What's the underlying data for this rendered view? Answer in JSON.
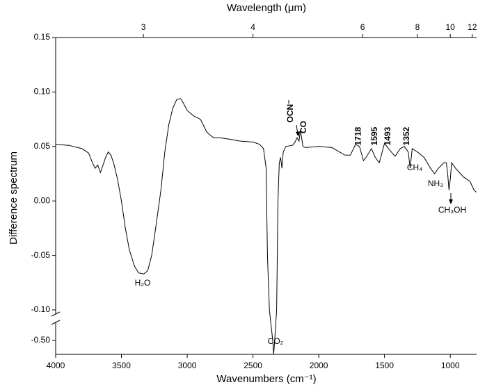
{
  "chart_data": {
    "type": "line",
    "xlabel": "Wavenumbers (cm⁻¹)",
    "ylabel": "Difference spectrum",
    "x2label": "Wavelength (μm)",
    "color": "#000000",
    "xlim": [
      4000,
      800
    ],
    "xticks": [
      4000,
      3500,
      3000,
      2500,
      2000,
      1500,
      1000
    ],
    "x2ticks": [
      3,
      4,
      6,
      8,
      10,
      12
    ],
    "ylim": [
      -0.53,
      0.15
    ],
    "y_break": [
      -0.47,
      -0.1
    ],
    "yticks": [
      {
        "value": -0.5,
        "label": "-0.50"
      },
      {
        "value": -0.1,
        "label": "-0.10"
      },
      -0.05,
      {
        "value": 0,
        "label": "0.00"
      },
      0.05,
      {
        "value": 0.1,
        "label": "0.10"
      },
      0.15
    ],
    "x": [
      4000,
      3900,
      3800,
      3750,
      3720,
      3700,
      3680,
      3660,
      3640,
      3620,
      3600,
      3580,
      3560,
      3530,
      3500,
      3470,
      3440,
      3400,
      3370,
      3330,
      3300,
      3270,
      3240,
      3200,
      3170,
      3140,
      3110,
      3080,
      3050,
      3030,
      3000,
      2950,
      2900,
      2850,
      2800,
      2750,
      2700,
      2600,
      2500,
      2450,
      2420,
      2400,
      2390,
      2375,
      2350,
      2343,
      2335,
      2320,
      2310,
      2300,
      2290,
      2280,
      2270,
      2250,
      2200,
      2180,
      2165,
      2150,
      2140,
      2130,
      2120,
      2100,
      2000,
      1900,
      1800,
      1760,
      1720,
      1690,
      1660,
      1640,
      1600,
      1570,
      1540,
      1500,
      1470,
      1420,
      1380,
      1350,
      1320,
      1305,
      1290,
      1250,
      1200,
      1150,
      1120,
      1090,
      1050,
      1030,
      1020,
      1010,
      1000,
      990,
      960,
      900,
      850,
      820,
      800
    ],
    "values": [
      0.052,
      0.051,
      0.048,
      0.044,
      0.035,
      0.03,
      0.033,
      0.026,
      0.033,
      0.04,
      0.045,
      0.042,
      0.035,
      0.02,
      0.0,
      -0.025,
      -0.045,
      -0.06,
      -0.066,
      -0.067,
      -0.064,
      -0.05,
      -0.025,
      0.01,
      0.045,
      0.07,
      0.085,
      0.093,
      0.094,
      0.09,
      0.083,
      0.078,
      0.075,
      0.063,
      0.058,
      0.058,
      0.057,
      0.055,
      0.054,
      0.052,
      0.048,
      0.03,
      -0.05,
      -0.1,
      -0.5,
      -0.53,
      -0.5,
      -0.1,
      0.0,
      0.035,
      0.04,
      0.03,
      0.045,
      0.05,
      0.051,
      0.054,
      0.058,
      0.055,
      0.065,
      0.058,
      0.05,
      0.049,
      0.05,
      0.049,
      0.042,
      0.042,
      0.052,
      0.05,
      0.037,
      0.04,
      0.048,
      0.04,
      0.035,
      0.053,
      0.048,
      0.041,
      0.048,
      0.05,
      0.045,
      0.03,
      0.048,
      0.045,
      0.04,
      0.03,
      0.025,
      0.03,
      0.035,
      0.035,
      0.025,
      0.01,
      0.02,
      0.035,
      0.03,
      0.022,
      0.018,
      0.01,
      0.008
    ],
    "peak_labels": [
      1718,
      1595,
      1493,
      1352
    ],
    "annotations": [
      "H₂O",
      "CO₂",
      "OCN⁻",
      "CO",
      "CH₄",
      "NH₃",
      "CH₃OH"
    ]
  }
}
